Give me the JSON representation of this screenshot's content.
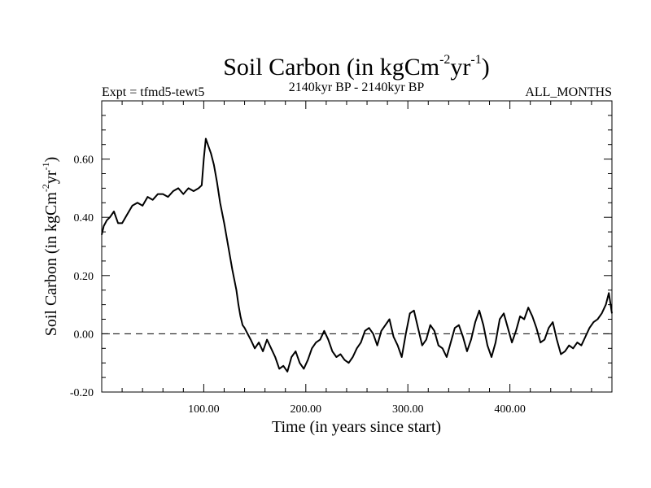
{
  "chart_data": {
    "type": "line",
    "title": "Soil Carbon (in kgCm",
    "title_sup1": "-2",
    "title_mid": "yr",
    "title_sup2": "-1",
    "title_end": ")",
    "subtitle_left": "Expt = tfmd5-tewt5",
    "subtitle_center": "2140kyr BP - 2140kyr BP",
    "subtitle_right": "ALL_MONTHS",
    "xlabel": "Time (in years since start)",
    "ylabel": "Soil Carbon (in kgCm",
    "ylabel_sup1": "-2",
    "ylabel_mid": "yr",
    "ylabel_sup2": "-1",
    "ylabel_end": ")",
    "xlim": [
      0,
      500
    ],
    "ylim": [
      -0.2,
      0.8
    ],
    "xticks": [
      100,
      200,
      300,
      400
    ],
    "xtick_labels": [
      "100.00",
      "200.00",
      "300.00",
      "400.00"
    ],
    "yticks": [
      -0.2,
      0.0,
      0.2,
      0.4,
      0.6
    ],
    "ytick_labels": [
      "-0.20",
      "0.00",
      "0.20",
      "0.40",
      "0.60"
    ],
    "reference_line": 0.0,
    "series": [
      {
        "name": "Soil Carbon",
        "x": [
          0,
          2,
          5,
          8,
          12,
          16,
          20,
          25,
          30,
          35,
          40,
          45,
          50,
          55,
          60,
          65,
          70,
          75,
          80,
          85,
          90,
          95,
          98,
          100,
          102,
          104,
          107,
          110,
          113,
          116,
          120,
          124,
          128,
          132,
          134,
          136,
          138,
          140,
          143,
          146,
          150,
          154,
          158,
          162,
          166,
          170,
          174,
          178,
          182,
          186,
          190,
          194,
          198,
          202,
          206,
          210,
          214,
          218,
          222,
          226,
          230,
          234,
          238,
          242,
          246,
          250,
          254,
          258,
          262,
          266,
          270,
          274,
          278,
          282,
          286,
          290,
          294,
          298,
          302,
          306,
          310,
          314,
          318,
          322,
          326,
          330,
          334,
          338,
          342,
          346,
          350,
          354,
          358,
          362,
          366,
          370,
          374,
          378,
          382,
          386,
          390,
          394,
          398,
          402,
          406,
          410,
          414,
          418,
          422,
          426,
          430,
          434,
          438,
          442,
          446,
          450,
          454,
          458,
          462,
          466,
          470,
          474,
          478,
          482,
          486,
          490,
          494,
          497,
          500
        ],
        "y": [
          0.34,
          0.37,
          0.39,
          0.4,
          0.42,
          0.38,
          0.38,
          0.41,
          0.44,
          0.45,
          0.44,
          0.47,
          0.46,
          0.48,
          0.48,
          0.47,
          0.49,
          0.5,
          0.48,
          0.5,
          0.49,
          0.5,
          0.51,
          0.6,
          0.67,
          0.65,
          0.62,
          0.58,
          0.52,
          0.45,
          0.38,
          0.3,
          0.22,
          0.15,
          0.1,
          0.06,
          0.03,
          0.02,
          0.0,
          -0.02,
          -0.05,
          -0.03,
          -0.06,
          -0.02,
          -0.05,
          -0.08,
          -0.12,
          -0.11,
          -0.13,
          -0.08,
          -0.06,
          -0.1,
          -0.12,
          -0.09,
          -0.05,
          -0.03,
          -0.02,
          0.01,
          -0.02,
          -0.06,
          -0.08,
          -0.07,
          -0.09,
          -0.1,
          -0.08,
          -0.05,
          -0.03,
          0.01,
          0.02,
          0.0,
          -0.04,
          0.01,
          0.03,
          0.05,
          -0.01,
          -0.04,
          -0.08,
          0.0,
          0.07,
          0.08,
          0.02,
          -0.04,
          -0.02,
          0.03,
          0.01,
          -0.04,
          -0.05,
          -0.08,
          -0.03,
          0.02,
          0.03,
          -0.01,
          -0.06,
          -0.02,
          0.04,
          0.08,
          0.03,
          -0.04,
          -0.08,
          -0.03,
          0.05,
          0.07,
          0.02,
          -0.03,
          0.01,
          0.06,
          0.05,
          0.09,
          0.06,
          0.02,
          -0.03,
          -0.02,
          0.02,
          0.04,
          -0.02,
          -0.07,
          -0.06,
          -0.04,
          -0.05,
          -0.03,
          -0.04,
          -0.01,
          0.02,
          0.04,
          0.05,
          0.07,
          0.1,
          0.14,
          0.07
        ]
      }
    ]
  }
}
